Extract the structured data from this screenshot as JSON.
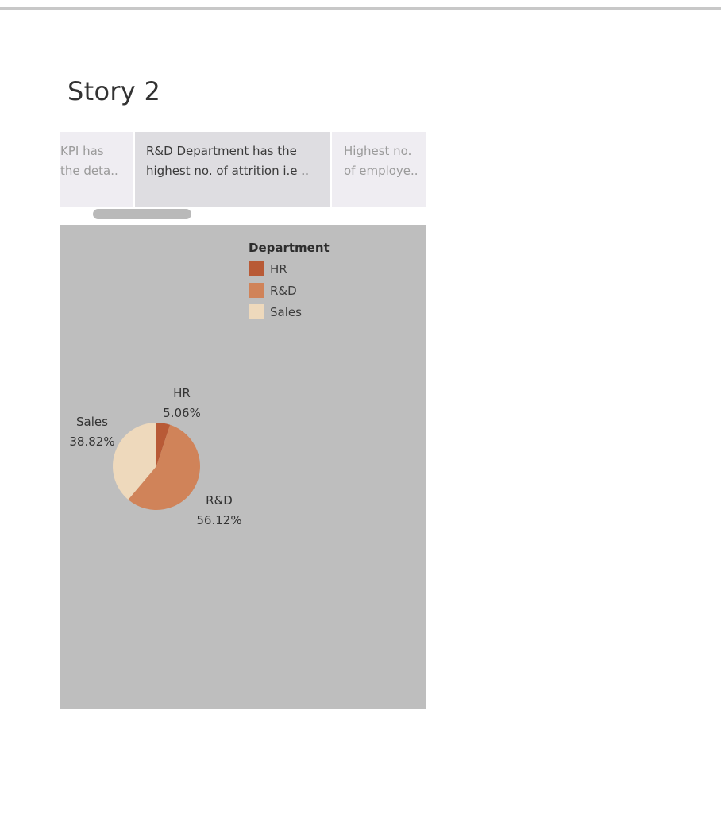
{
  "story": {
    "title": "Story 2"
  },
  "story_points": [
    {
      "line1": "KPI has",
      "line2": "the deta.."
    },
    {
      "line1": "R&D Department has the",
      "line2": "highest no. of attrition i.e .."
    },
    {
      "line1": "Highest no.",
      "line2": "of employe.."
    }
  ],
  "colors": {
    "dashboard_bg": "#bebebe",
    "hr": "#b85a36",
    "rnd": "#d08359",
    "sales": "#eed9bc"
  },
  "chart_data": {
    "type": "pie",
    "legend_title": "Department",
    "legend_position": "top-right",
    "slices": [
      {
        "name": "HR",
        "value": 5.06,
        "label": "5.06%",
        "color": "#b85a36"
      },
      {
        "name": "R&D",
        "value": 56.12,
        "label": "56.12%",
        "color": "#d08359"
      },
      {
        "name": "Sales",
        "value": 38.82,
        "label": "38.82%",
        "color": "#eed9bc"
      }
    ]
  }
}
